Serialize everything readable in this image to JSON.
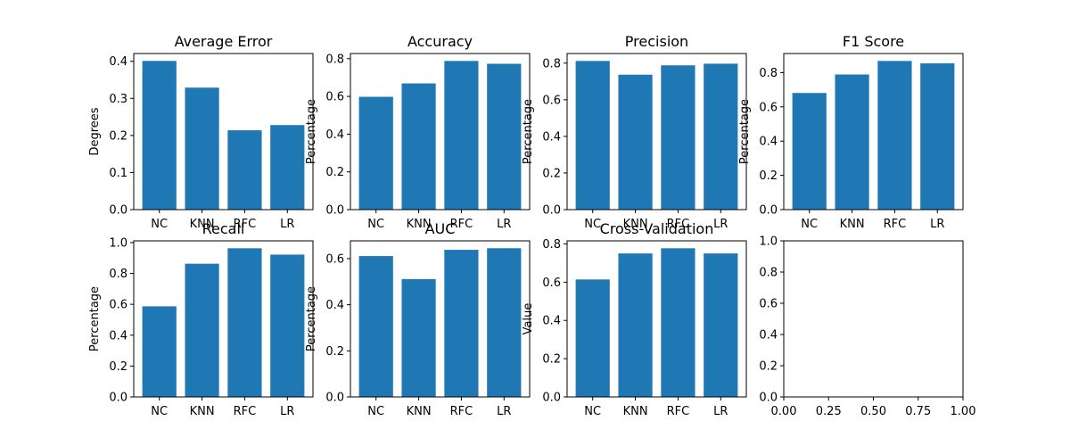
{
  "colors": {
    "bar": "#1f77b4",
    "axis": "#000000",
    "background": "#ffffff"
  },
  "chart_data": [
    {
      "type": "bar",
      "title": "Average Error",
      "xlabel": "",
      "ylabel": "Degrees",
      "categories": [
        "NC",
        "KNN",
        "RFC",
        "LR"
      ],
      "values": [
        0.401,
        0.329,
        0.214,
        0.228
      ],
      "ylim": [
        0,
        0.421
      ],
      "yticks": [
        0.0,
        0.1,
        0.2,
        0.3,
        0.4
      ],
      "ytick_labels": [
        "0.0",
        "0.1",
        "0.2",
        "0.3",
        "0.4"
      ],
      "grid": false
    },
    {
      "type": "bar",
      "title": "Accuracy",
      "xlabel": "",
      "ylabel": "Percentage",
      "categories": [
        "NC",
        "KNN",
        "RFC",
        "LR"
      ],
      "values": [
        0.598,
        0.669,
        0.788,
        0.773
      ],
      "ylim": [
        0,
        0.8274
      ],
      "yticks": [
        0.0,
        0.2,
        0.4,
        0.6,
        0.8
      ],
      "ytick_labels": [
        "0.0",
        "0.2",
        "0.4",
        "0.6",
        "0.8"
      ],
      "grid": false
    },
    {
      "type": "bar",
      "title": "Precision",
      "xlabel": "",
      "ylabel": "Percentage",
      "categories": [
        "NC",
        "KNN",
        "RFC",
        "LR"
      ],
      "values": [
        0.812,
        0.737,
        0.788,
        0.797
      ],
      "ylim": [
        0,
        0.8526
      ],
      "yticks": [
        0.0,
        0.2,
        0.4,
        0.6,
        0.8
      ],
      "ytick_labels": [
        "0.0",
        "0.2",
        "0.4",
        "0.6",
        "0.8"
      ],
      "grid": false
    },
    {
      "type": "bar",
      "title": "F1 Score",
      "xlabel": "",
      "ylabel": "Percentage",
      "categories": [
        "NC",
        "KNN",
        "RFC",
        "LR"
      ],
      "values": [
        0.681,
        0.789,
        0.868,
        0.854
      ],
      "ylim": [
        0,
        0.9114
      ],
      "yticks": [
        0.0,
        0.2,
        0.4,
        0.6,
        0.8
      ],
      "ytick_labels": [
        "0.0",
        "0.2",
        "0.4",
        "0.6",
        "0.8"
      ],
      "grid": false
    },
    {
      "type": "bar",
      "title": "Recall",
      "xlabel": "",
      "ylabel": "Percentage",
      "categories": [
        "NC",
        "KNN",
        "RFC",
        "LR"
      ],
      "values": [
        0.587,
        0.863,
        0.963,
        0.922
      ],
      "ylim": [
        0,
        1.0112
      ],
      "yticks": [
        0.0,
        0.2,
        0.4,
        0.6,
        0.8,
        1.0
      ],
      "ytick_labels": [
        "0.0",
        "0.2",
        "0.4",
        "0.6",
        "0.8",
        "1.0"
      ],
      "grid": false
    },
    {
      "type": "bar",
      "title": "AUC",
      "xlabel": "",
      "ylabel": "Percentage",
      "categories": [
        "NC",
        "KNN",
        "RFC",
        "LR"
      ],
      "values": [
        0.611,
        0.511,
        0.638,
        0.645
      ],
      "ylim": [
        0,
        0.677
      ],
      "yticks": [
        0.0,
        0.2,
        0.4,
        0.6
      ],
      "ytick_labels": [
        "0.0",
        "0.2",
        "0.4",
        "0.6"
      ],
      "grid": false
    },
    {
      "type": "bar",
      "title": "Cross-Validation",
      "xlabel": "",
      "ylabel": "Value",
      "categories": [
        "NC",
        "KNN",
        "RFC",
        "LR"
      ],
      "values": [
        0.614,
        0.75,
        0.777,
        0.75
      ],
      "ylim": [
        0,
        0.8159
      ],
      "yticks": [
        0.0,
        0.2,
        0.4,
        0.6,
        0.8
      ],
      "ytick_labels": [
        "0.0",
        "0.2",
        "0.4",
        "0.6",
        "0.8"
      ],
      "grid": false
    },
    {
      "type": "empty",
      "title": "",
      "xlabel": "",
      "ylabel": "",
      "xlim": [
        0,
        1
      ],
      "ylim": [
        0,
        1
      ],
      "xticks": [
        0.0,
        0.25,
        0.5,
        0.75,
        1.0
      ],
      "xtick_labels": [
        "0.00",
        "0.25",
        "0.50",
        "0.75",
        "1.00"
      ],
      "yticks": [
        0.0,
        0.2,
        0.4,
        0.6,
        0.8,
        1.0
      ],
      "ytick_labels": [
        "0.0",
        "0.2",
        "0.4",
        "0.6",
        "0.8",
        "1.0"
      ],
      "grid": false
    }
  ]
}
